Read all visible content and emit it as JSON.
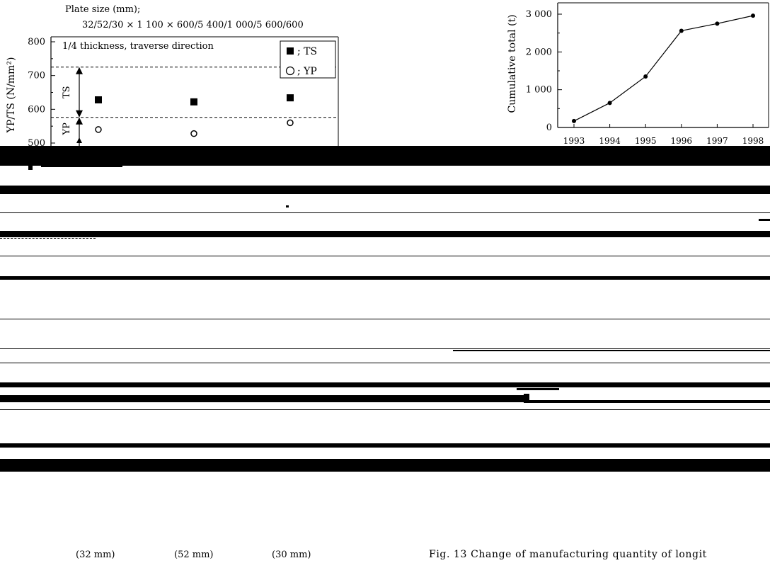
{
  "chart_data": [
    {
      "type": "scatter",
      "header_line1": "Plate size (mm);",
      "header_line2": "32/52/30 × 1 100 × 600/5 400/1 000/5 600/600",
      "ylabel": "YP/TS (N/mm²)",
      "annotation": "1/4 thickness, traverse direction",
      "ylim": [
        500,
        800
      ],
      "yticks": [
        "800",
        "700",
        "600",
        "500"
      ],
      "range_labels": [
        "TS",
        "YP"
      ],
      "ref_lines": [
        725,
        576
      ],
      "legend": [
        {
          "marker": "■",
          "label": "; TS"
        },
        {
          "marker": "○",
          "label": "; YP"
        }
      ],
      "categories": [
        "(32 mm)",
        "(52 mm)",
        "(30 mm)"
      ],
      "series": [
        {
          "name": "TS",
          "values": [
            628,
            622,
            634
          ]
        },
        {
          "name": "YP",
          "values": [
            540,
            528,
            560
          ]
        }
      ]
    },
    {
      "type": "line",
      "ylabel": "Cumulative total (t)",
      "ylim": [
        0,
        3300
      ],
      "yticks": [
        "3 000",
        "2 000",
        "1 000",
        "0"
      ],
      "x": [
        "1993",
        "1994",
        "1995",
        "1996",
        "1997",
        "1998"
      ],
      "values": [
        170,
        650,
        1350,
        2560,
        2750,
        2960
      ]
    }
  ],
  "caption": "Fig. 13   Change of manufacturing quantity of longit"
}
